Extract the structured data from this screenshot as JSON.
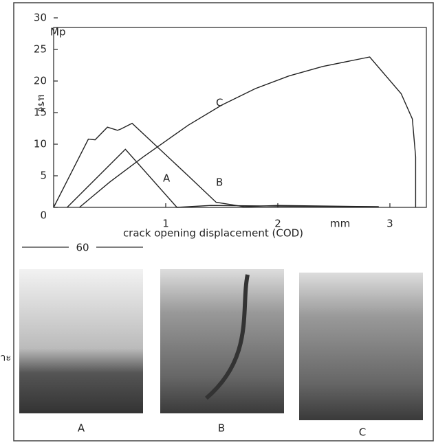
{
  "chart_data": {
    "type": "line",
    "y_unit": "Mp",
    "y_label": "แรง",
    "x_label": "crack opening displacement (COD)",
    "x_unit": "mm",
    "series": [
      {
        "name": "A",
        "color": "#222",
        "x": [
          0.12,
          0.64,
          1.1,
          1.4,
          2.0,
          2.9
        ],
        "values": [
          0,
          9.2,
          0,
          0.3,
          0.2,
          0.1
        ]
      },
      {
        "name": "B",
        "color": "#222",
        "x": [
          0,
          0.31,
          0.37,
          0.48,
          0.57,
          0.6,
          0.7,
          1.2,
          1.45,
          1.7,
          2.0,
          2.9
        ],
        "values": [
          0,
          10.8,
          10.7,
          12.7,
          12.2,
          12.4,
          13.3,
          5,
          0.8,
          0.1,
          0.3,
          0.1
        ]
      },
      {
        "name": "C",
        "color": "#222",
        "x": [
          0.23,
          0.5,
          0.8,
          1.0,
          1.2,
          1.5,
          1.8,
          2.1,
          2.4,
          2.82,
          3.1,
          3.2,
          3.23,
          3.23
        ],
        "values": [
          0,
          4,
          8,
          10.5,
          13,
          16.2,
          18.8,
          20.8,
          22.3,
          23.8,
          18,
          14,
          8,
          0
        ]
      }
    ],
    "xlim": [
      0,
      3.35
    ],
    "ylim": [
      0,
      30
    ],
    "xticks": [
      0,
      1,
      2,
      3
    ],
    "yticks": [
      0,
      5,
      10,
      15,
      20,
      25,
      30
    ],
    "scale_bar": "60",
    "photo_labels": [
      "A",
      "B",
      "C"
    ],
    "side_text": "าะ"
  }
}
